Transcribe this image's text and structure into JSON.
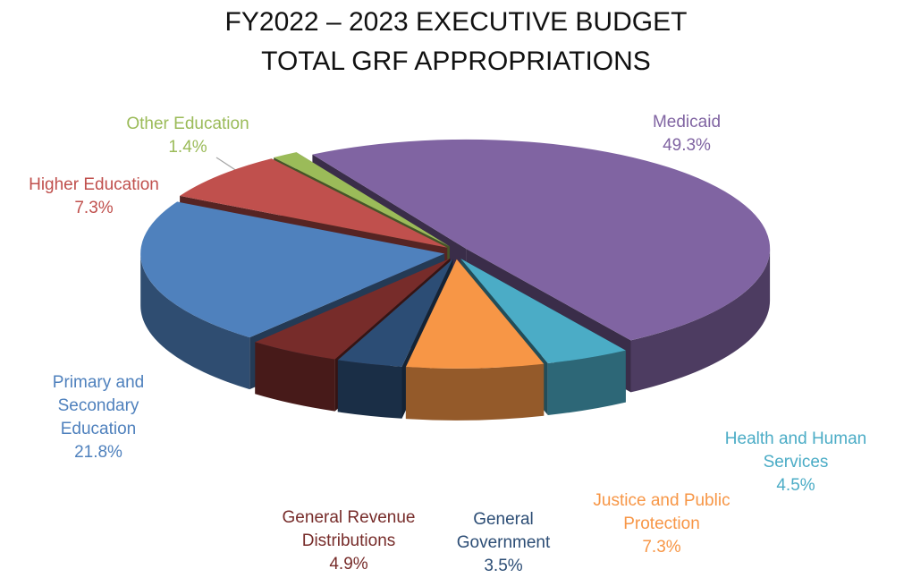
{
  "chart_data": {
    "type": "pie",
    "title": "FY2022 – 2023 EXECUTIVE BUDGET",
    "subtitle": "TOTAL GRF APPROPRIATIONS",
    "categories": [
      "Medicaid",
      "Health and Human Services",
      "Justice and Public Protection",
      "General Government",
      "General Revenue Distributions",
      "Primary and Secondary Education",
      "Higher Education",
      "Other Education"
    ],
    "values": [
      49.3,
      4.5,
      7.3,
      3.5,
      4.9,
      21.8,
      7.3,
      1.4
    ],
    "value_labels": [
      "49.3%",
      "4.5%",
      "7.3%",
      "3.5%",
      "4.9%",
      "21.8%",
      "7.3%",
      "1.4%"
    ],
    "colors": [
      "#8064a2",
      "#4bacc6",
      "#f79646",
      "#2c4d75",
      "#772c2a",
      "#4f81bd",
      "#c0504d",
      "#9bbb59"
    ]
  }
}
